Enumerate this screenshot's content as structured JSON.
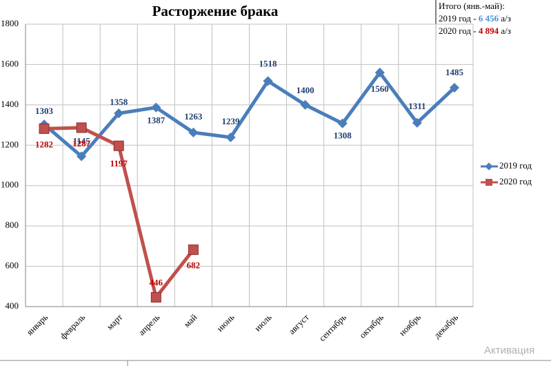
{
  "chart_data": {
    "type": "line",
    "title": "Расторжение брака",
    "categories": [
      "январь",
      "февраль",
      "март",
      "апрель",
      "май",
      "июнь",
      "июль",
      "август",
      "сентябрь",
      "октябрь",
      "ноябрь",
      "декабрь"
    ],
    "series": [
      {
        "name": "2019 год",
        "color": "#4a7ebb",
        "label_color": "#1f3f6e",
        "values": [
          1303,
          1145,
          1358,
          1387,
          1263,
          1239,
          1518,
          1400,
          1308,
          1560,
          1311,
          1485
        ]
      },
      {
        "name": "2020 год",
        "color": "#c0504d",
        "label_color": "#c00000",
        "values": [
          1282,
          1287,
          1197,
          446,
          682,
          null,
          null,
          null,
          null,
          null,
          null,
          null
        ]
      }
    ],
    "ylim": [
      400,
      1800
    ],
    "yticks": [
      400,
      600,
      800,
      1000,
      1200,
      1400,
      1600,
      1800
    ],
    "grid": true,
    "legend": "right",
    "summary": {
      "heading": "Итого (янв.-май):",
      "lines": [
        {
          "prefix": "2019 год - ",
          "amount": "6 456",
          "suffix": " а/з",
          "color": "#4a90d9"
        },
        {
          "prefix": "2020 год - ",
          "amount": "4 894",
          "suffix": " а/з",
          "color": "#c00000"
        }
      ]
    },
    "watermark": "Активация"
  }
}
